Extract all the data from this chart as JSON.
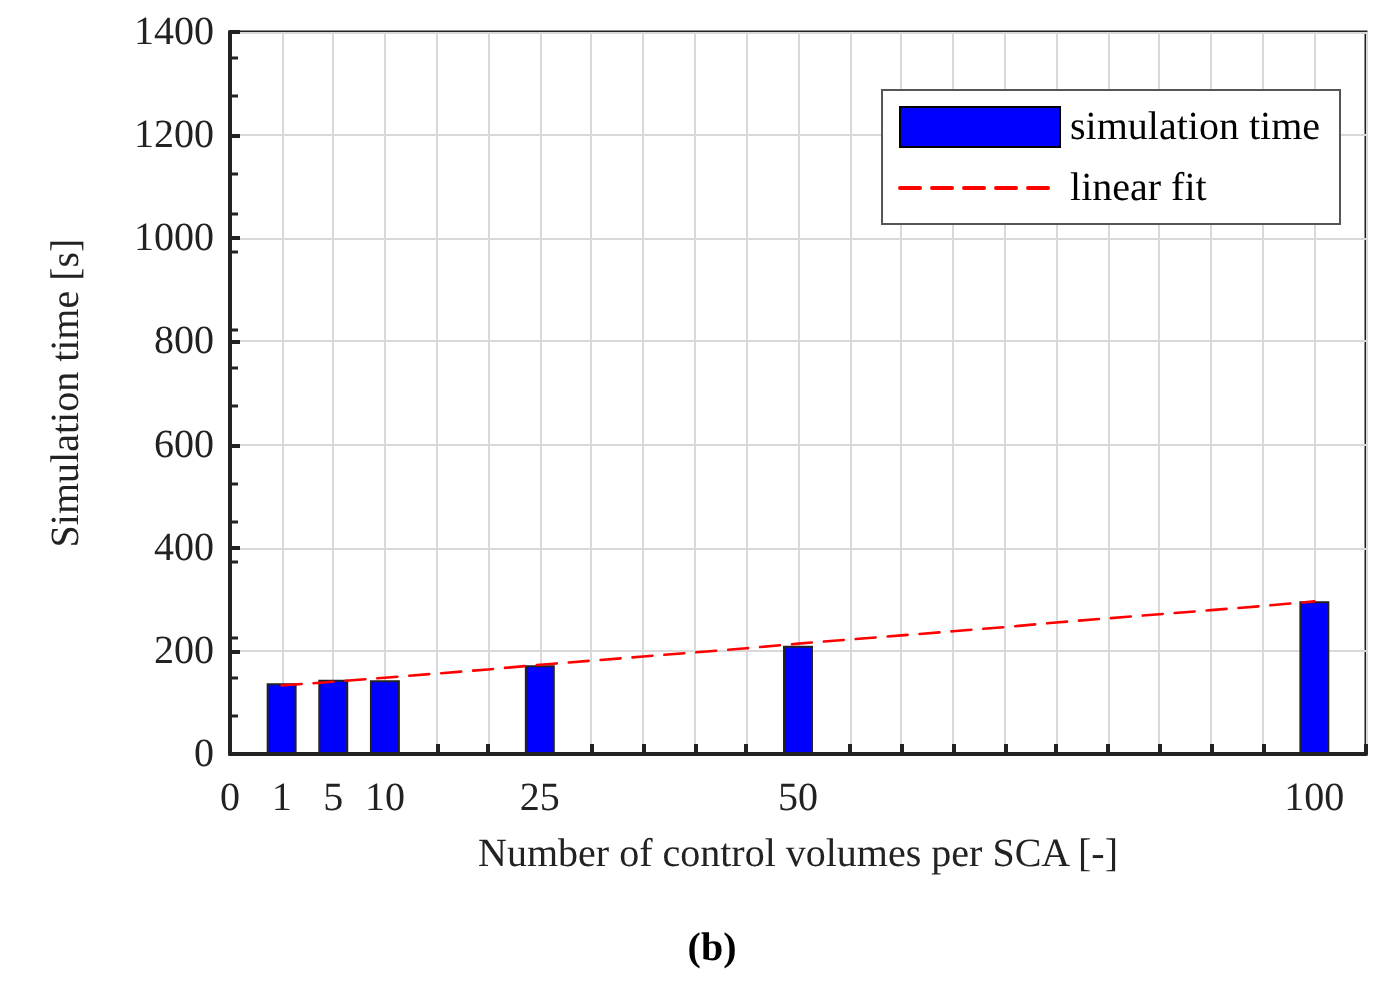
{
  "chart_data": {
    "type": "bar",
    "title": "(b)",
    "xlabel": "Number of control volumes per SCA [-]",
    "ylabel": "Simulation time [s]",
    "categories": [
      "0",
      "1",
      "5",
      "10",
      null,
      null,
      "25",
      null,
      null,
      null,
      null,
      "50",
      null,
      null,
      null,
      null,
      null,
      null,
      null,
      null,
      null,
      "100",
      null
    ],
    "series": [
      {
        "name": "simulation time",
        "color": "#0000ff",
        "values": [
          null,
          137,
          144,
          143,
          null,
          null,
          172,
          null,
          null,
          null,
          null,
          210,
          null,
          null,
          null,
          null,
          null,
          null,
          null,
          null,
          null,
          296,
          null
        ]
      },
      {
        "name": "linear fit",
        "type": "line",
        "color": "#ff0000",
        "line_style": "dashed",
        "marker": "none",
        "values": [
          null,
          133,
          140,
          148,
          156,
          164,
          173,
          181,
          189,
          197,
          205,
          214,
          222,
          230,
          238,
          246,
          255,
          263,
          271,
          279,
          287,
          296,
          null
        ]
      }
    ],
    "ylim": [
      0,
      1400
    ],
    "yticks": [
      0,
      200,
      400,
      600,
      800,
      1000,
      1200,
      1400
    ],
    "grid": true,
    "legend": "top right"
  }
}
